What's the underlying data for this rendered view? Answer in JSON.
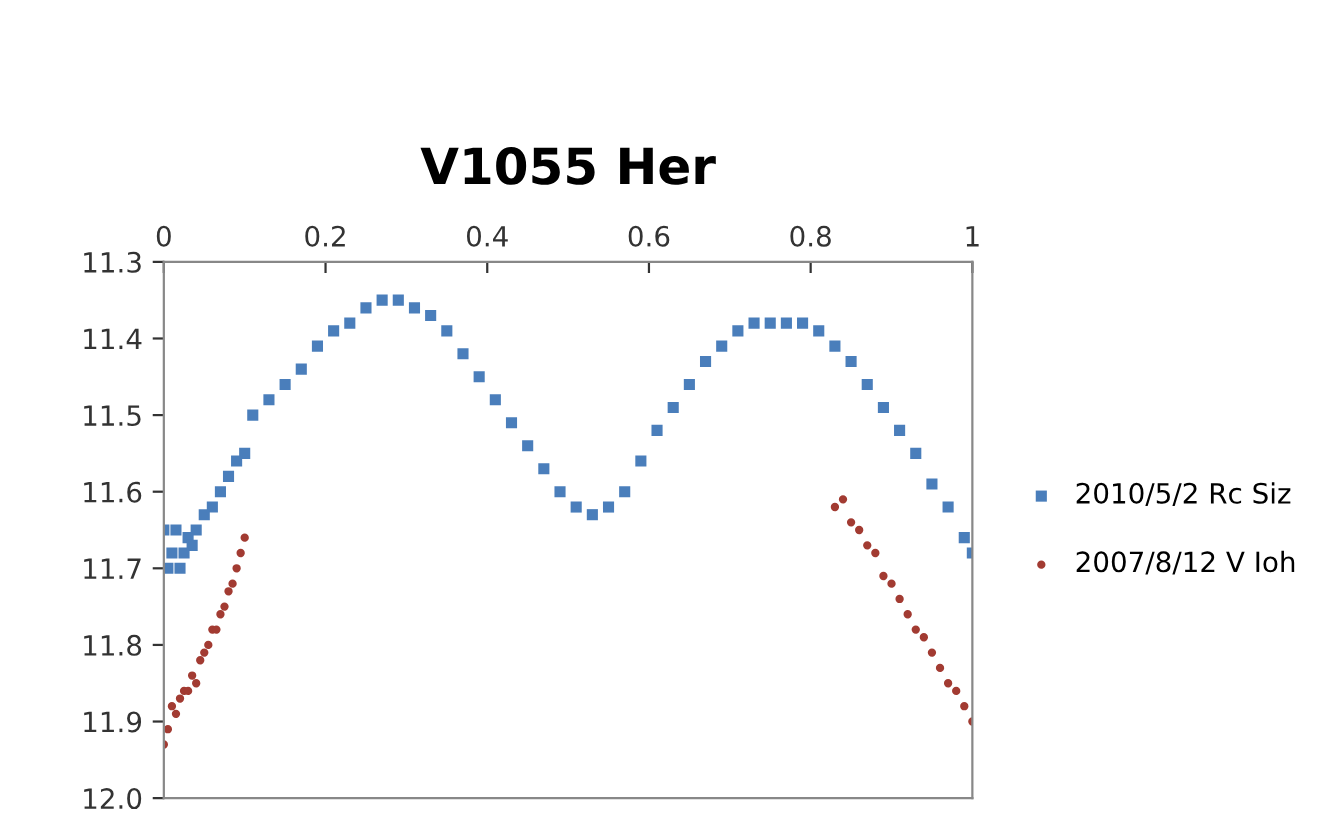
{
  "chart_data": {
    "type": "scatter",
    "title": "V1055 Her",
    "xlim": [
      0,
      1
    ],
    "xticks": [
      0,
      0.2,
      0.4,
      0.6,
      0.8,
      1
    ],
    "ylim": [
      12.0,
      11.3
    ],
    "yticks": [
      11.3,
      11.4,
      11.5,
      11.6,
      11.7,
      11.8,
      11.9,
      {
        "value": 12.0,
        "label": "12.0"
      }
    ],
    "grid": false,
    "legend": "right",
    "series": [
      {
        "name": "2010/5/2 Rc Siz",
        "color": "#4a7ebb",
        "marker": "square",
        "x": [
          0.0,
          0.005,
          0.01,
          0.015,
          0.02,
          0.025,
          0.03,
          0.035,
          0.04,
          0.05,
          0.06,
          0.07,
          0.08,
          0.09,
          0.1,
          0.11,
          0.13,
          0.15,
          0.17,
          0.19,
          0.21,
          0.23,
          0.25,
          0.27,
          0.29,
          0.31,
          0.33,
          0.35,
          0.37,
          0.39,
          0.41,
          0.43,
          0.45,
          0.47,
          0.49,
          0.51,
          0.53,
          0.55,
          0.57,
          0.59,
          0.61,
          0.63,
          0.65,
          0.67,
          0.69,
          0.71,
          0.73,
          0.75,
          0.77,
          0.79,
          0.81,
          0.83,
          0.85,
          0.87,
          0.89,
          0.91,
          0.93,
          0.95,
          0.97,
          0.99,
          1.0
        ],
        "values": [
          11.65,
          11.7,
          11.68,
          11.65,
          11.7,
          11.68,
          11.66,
          11.67,
          11.65,
          11.63,
          11.62,
          11.6,
          11.58,
          11.56,
          11.55,
          11.5,
          11.48,
          11.46,
          11.44,
          11.41,
          11.39,
          11.38,
          11.36,
          11.35,
          11.35,
          11.36,
          11.37,
          11.39,
          11.42,
          11.45,
          11.48,
          11.51,
          11.54,
          11.57,
          11.6,
          11.62,
          11.63,
          11.62,
          11.6,
          11.56,
          11.52,
          11.49,
          11.46,
          11.43,
          11.41,
          11.39,
          11.38,
          11.38,
          11.38,
          11.38,
          11.39,
          11.41,
          11.43,
          11.46,
          11.49,
          11.52,
          11.55,
          11.59,
          11.62,
          11.66,
          11.68
        ]
      },
      {
        "name": "2007/8/12 V Ioh",
        "color": "#a23b32",
        "marker": "circle",
        "x": [
          0.0,
          0.005,
          0.01,
          0.015,
          0.02,
          0.025,
          0.03,
          0.035,
          0.04,
          0.045,
          0.05,
          0.055,
          0.06,
          0.065,
          0.07,
          0.075,
          0.08,
          0.085,
          0.09,
          0.095,
          0.1,
          0.83,
          0.84,
          0.85,
          0.86,
          0.87,
          0.88,
          0.89,
          0.9,
          0.91,
          0.92,
          0.93,
          0.94,
          0.95,
          0.96,
          0.97,
          0.98,
          0.99,
          1.0
        ],
        "values": [
          11.93,
          11.91,
          11.88,
          11.89,
          11.87,
          11.86,
          11.86,
          11.84,
          11.85,
          11.82,
          11.81,
          11.8,
          11.78,
          11.78,
          11.76,
          11.75,
          11.73,
          11.72,
          11.7,
          11.68,
          11.66,
          11.62,
          11.61,
          11.64,
          11.65,
          11.67,
          11.68,
          11.71,
          11.72,
          11.74,
          11.76,
          11.78,
          11.79,
          11.81,
          11.83,
          11.85,
          11.86,
          11.88,
          11.9
        ]
      }
    ]
  }
}
